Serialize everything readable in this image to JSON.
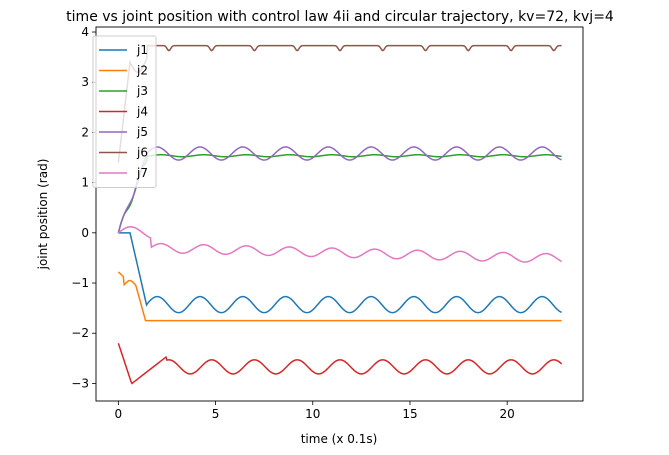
{
  "chart_data": {
    "type": "line",
    "title": "time vs joint position with control law 4ii and circular trajectory, kv=72, kvj=4",
    "xlabel": "time (x 0.1s)",
    "ylabel": "joint position (rad)",
    "xlim": [
      -1.15,
      23.9
    ],
    "ylim": [
      -3.35,
      4.1
    ],
    "xticks": [
      0,
      5,
      10,
      15,
      20
    ],
    "yticks": [
      -3,
      -2,
      -1,
      0,
      1,
      2,
      3,
      4
    ],
    "grid": false,
    "legend_position": "upper-left",
    "series": [
      {
        "name": "j1",
        "color": "#1f77b4",
        "shape": "j1"
      },
      {
        "name": "j2",
        "color": "#ff7f0e",
        "shape": "j2"
      },
      {
        "name": "j3",
        "color": "#2ca02c",
        "shape": "j3"
      },
      {
        "name": "j4",
        "color": "#d62728",
        "shape": "j4"
      },
      {
        "name": "j5",
        "color": "#9467bd",
        "shape": "j5"
      },
      {
        "name": "j6",
        "color": "#8c564b",
        "shape": "j6"
      },
      {
        "name": "j7",
        "color": "#e377c2",
        "shape": "j7"
      }
    ]
  }
}
